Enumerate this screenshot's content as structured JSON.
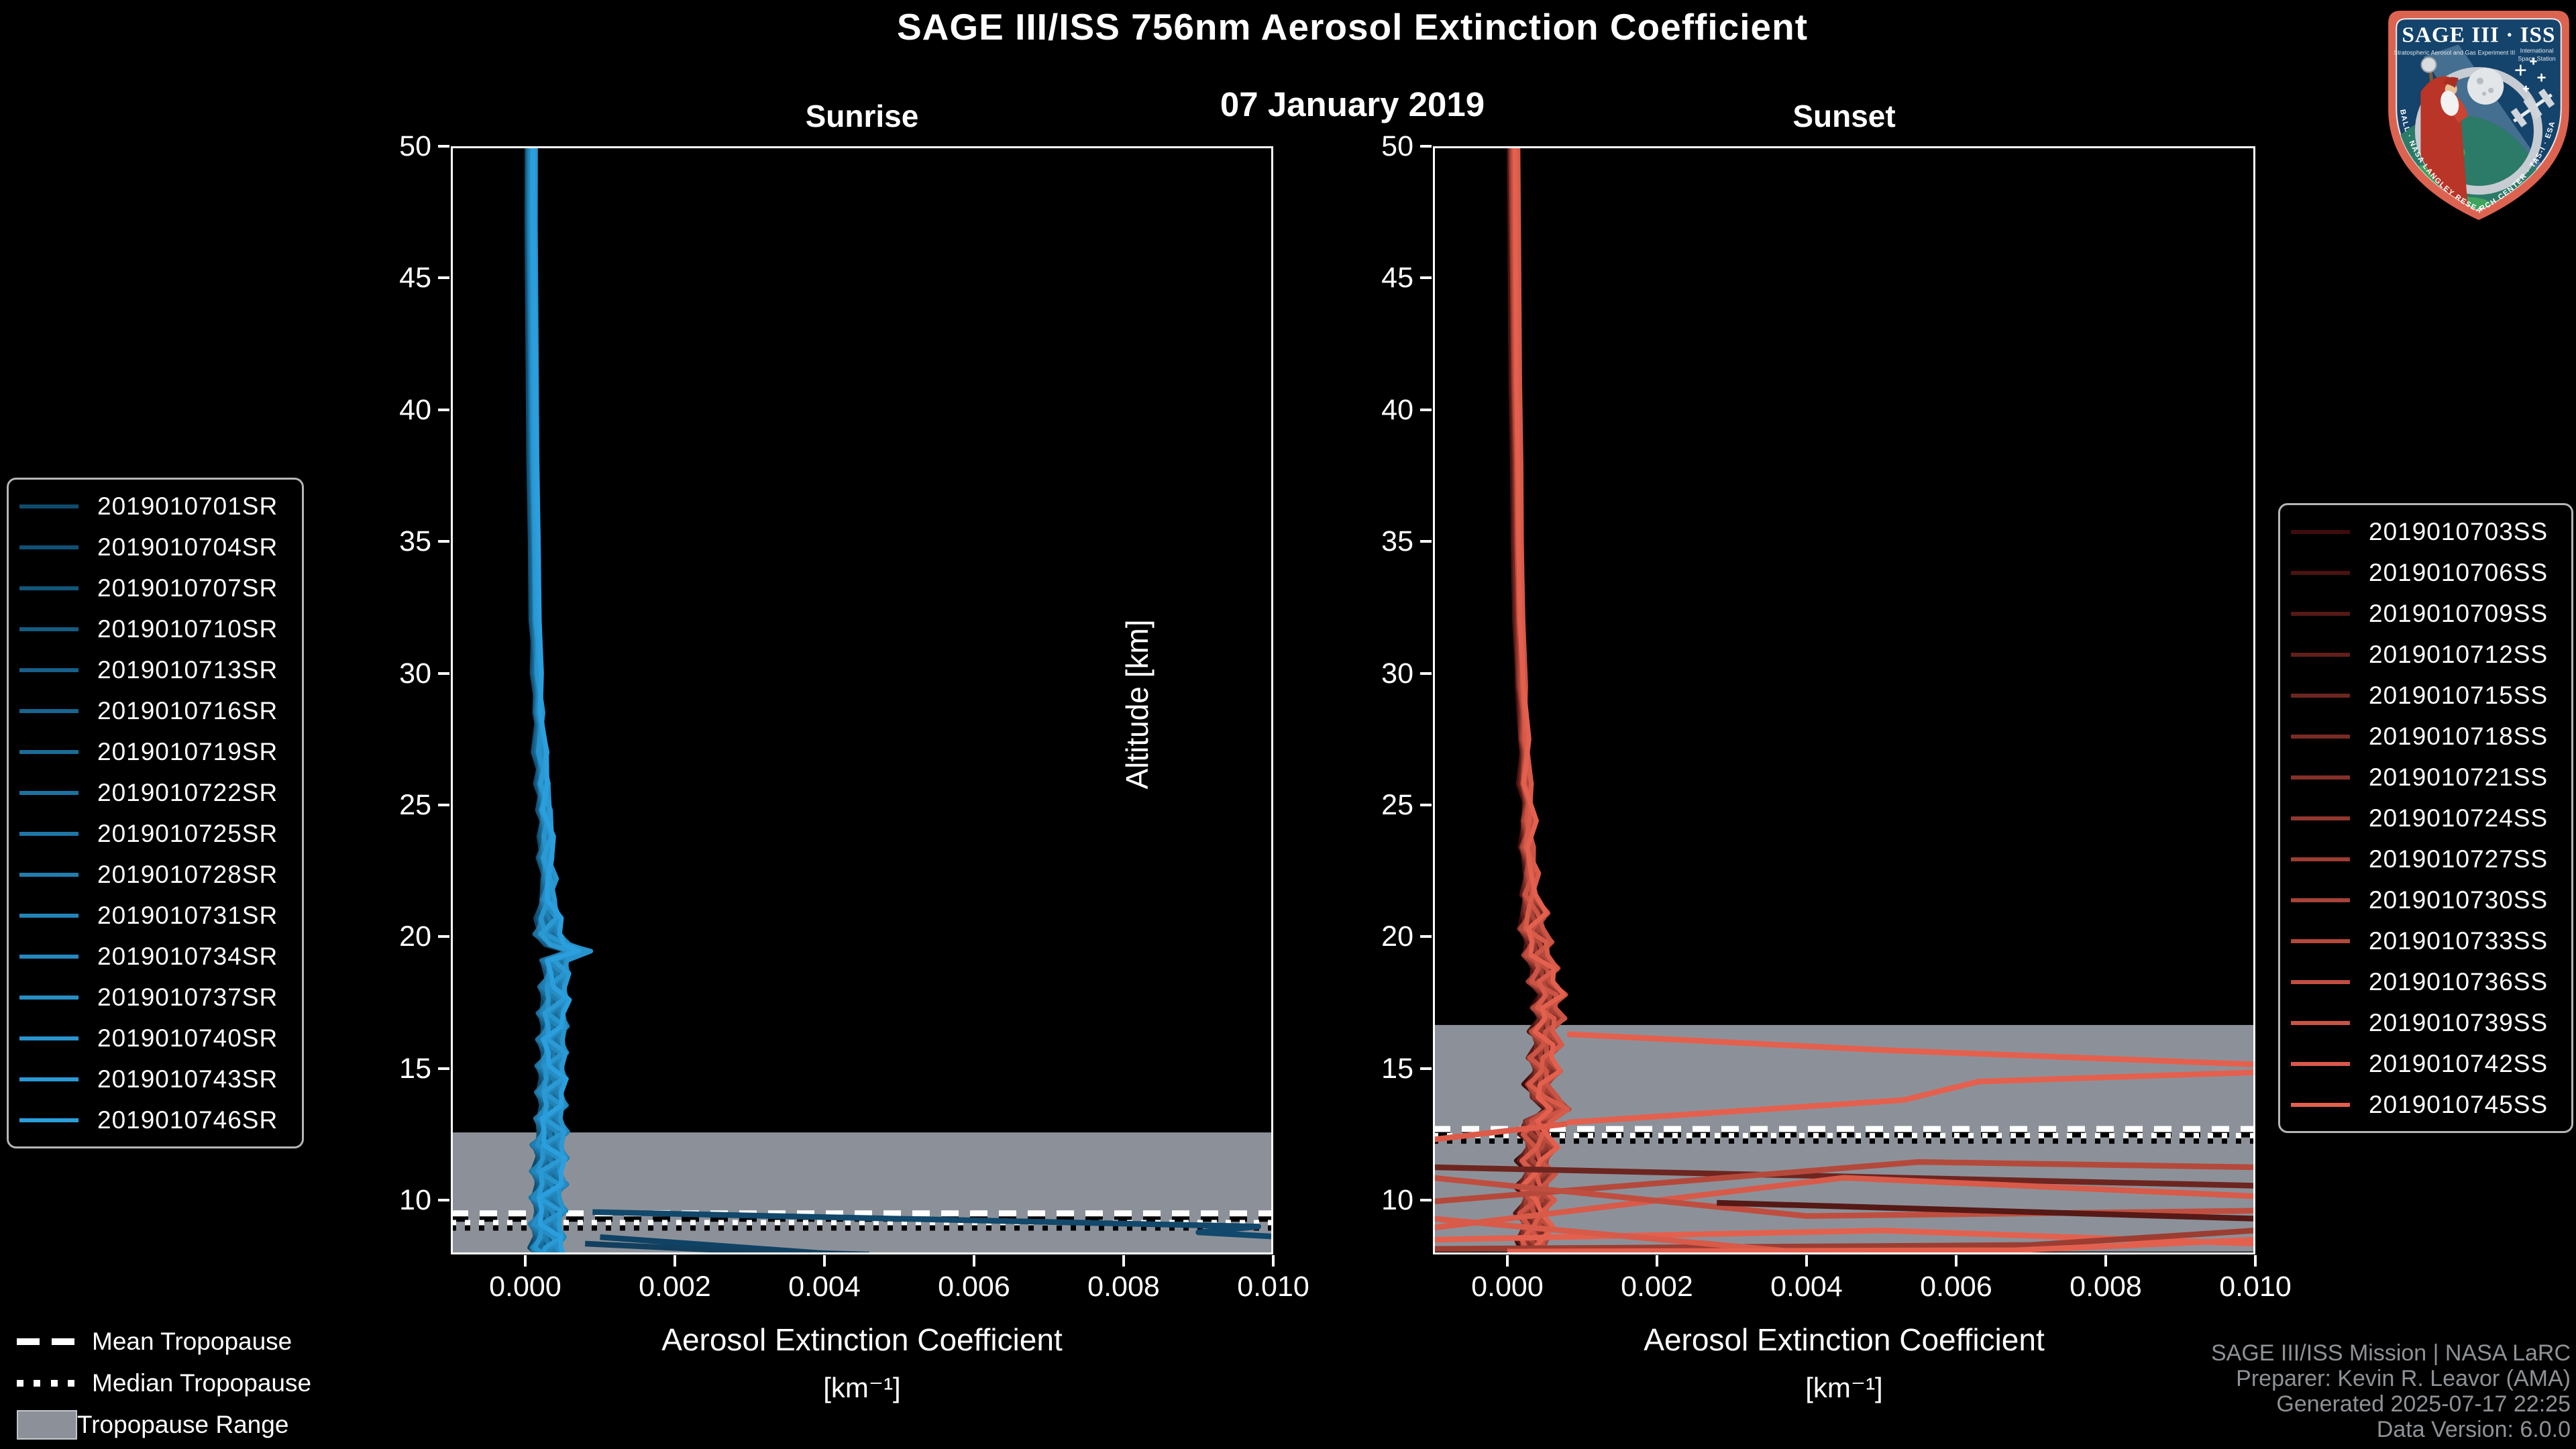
{
  "header": {
    "title": "SAGE III/ISS 756nm Aerosol Extinction Coefficient",
    "subtitle": "07 January 2019"
  },
  "footer_credits": {
    "color": "#8e9296",
    "line1": "SAGE III/ISS Mission | NASA LaRC",
    "line2": "Preparer: Kevin R. Leavor (AMA)",
    "line3": "Generated 2025-07-17 22:25",
    "line4": "Data Version: 6.0.0"
  },
  "tropopause_legend": {
    "items": [
      {
        "label": "Mean Tropopause",
        "style": "dashed-line"
      },
      {
        "label": "Median Tropopause",
        "style": "dotted-line"
      },
      {
        "label": "Tropopause Range",
        "style": "gray-band"
      }
    ]
  },
  "logo": {
    "title": "SAGE III · ISS",
    "sub_left": "Stratospheric Aerosol and Gas Experiment III",
    "sub_right1": "International",
    "sub_right2": "Space Station",
    "border_text": "BALL · NASA LANGLEY RESEARCH CENTER · TAS-I · ESA",
    "border_color": "#dd6351",
    "field_color": "#14436b"
  },
  "chart_data": [
    {
      "type": "line",
      "panel": "sunrise",
      "title": "Sunrise",
      "xlabel": "Aerosol Extinction Coefficient",
      "xunits": "[km⁻¹]",
      "ylabel": "Altitude [km]",
      "xlim": [
        -0.000995,
        0.01
      ],
      "ylim": [
        7.94,
        50
      ],
      "grid": false,
      "legend_position": "left",
      "xticks": [
        {
          "value": 0.0,
          "label": "0.000"
        },
        {
          "value": 0.002,
          "label": "0.002"
        },
        {
          "value": 0.004,
          "label": "0.004"
        },
        {
          "value": 0.006,
          "label": "0.006"
        },
        {
          "value": 0.008,
          "label": "0.008"
        },
        {
          "value": 0.01,
          "label": "0.010"
        }
      ],
      "yticks": [
        10,
        15,
        20,
        25,
        30,
        35,
        40,
        45,
        50
      ],
      "tropopause": {
        "mean_km": 9.5,
        "median_km": 9.15,
        "range_top_km": 12.57,
        "range_bottom_km": 7.94,
        "band_color": "#8c9199"
      },
      "series": [
        {
          "name": "2019010701SR",
          "color": "#0E4A6B"
        },
        {
          "name": "2019010704SR",
          "color": "#104F73"
        },
        {
          "name": "2019010707SR",
          "color": "#12557A"
        },
        {
          "name": "2019010710SR",
          "color": "#145B82"
        },
        {
          "name": "2019010713SR",
          "color": "#166089"
        },
        {
          "name": "2019010716SR",
          "color": "#186691"
        },
        {
          "name": "2019010719SR",
          "color": "#1A6C98"
        },
        {
          "name": "2019010722SR",
          "color": "#1C72A0"
        },
        {
          "name": "2019010725SR",
          "color": "#1E77A7"
        },
        {
          "name": "2019010728SR",
          "color": "#207DAF"
        },
        {
          "name": "2019010731SR",
          "color": "#2283B6"
        },
        {
          "name": "2019010734SR",
          "color": "#2488BE"
        },
        {
          "name": "2019010737SR",
          "color": "#268EC5"
        },
        {
          "name": "2019010740SR",
          "color": "#2894CD"
        },
        {
          "name": "2019010743SR",
          "color": "#2A99D4"
        },
        {
          "name": "2019010746SR",
          "color": "#2B9FDE"
        }
      ],
      "mean_profile": [
        [
          8e-05,
          50
        ],
        [
          8e-05,
          47
        ],
        [
          9e-05,
          44
        ],
        [
          0.0001,
          41
        ],
        [
          0.00011,
          38
        ],
        [
          0.00013,
          35
        ],
        [
          0.00014,
          32
        ],
        [
          0.00016,
          30
        ],
        [
          0.00018,
          28.5
        ],
        [
          0.00021,
          27
        ],
        [
          0.00024,
          25.8
        ],
        [
          0.00026,
          24.8
        ],
        [
          0.00029,
          23.8
        ],
        [
          0.00027,
          23
        ],
        [
          0.00032,
          22.2
        ],
        [
          0.00029,
          21.4
        ],
        [
          0.00033,
          20.7
        ],
        [
          0.00029,
          20.1
        ],
        [
          0.00045,
          19.7
        ],
        [
          0.00072,
          19.45
        ],
        [
          0.00038,
          19.1
        ],
        [
          0.00044,
          18.6
        ],
        [
          0.00035,
          18.1
        ],
        [
          0.00043,
          17.6
        ],
        [
          0.00033,
          17.1
        ],
        [
          0.00042,
          16.6
        ],
        [
          0.00032,
          16.1
        ],
        [
          0.00041,
          15.6
        ],
        [
          0.00031,
          15.1
        ],
        [
          0.0004,
          14.6
        ],
        [
          0.0003,
          14.1
        ],
        [
          0.0004,
          13.6
        ],
        [
          0.00029,
          13.1
        ],
        [
          0.00039,
          12.6
        ],
        [
          0.00027,
          12.1
        ],
        [
          0.00038,
          11.6
        ],
        [
          0.00026,
          11.1
        ],
        [
          0.00037,
          10.6
        ],
        [
          0.00025,
          10.1
        ],
        [
          0.00036,
          9.6
        ],
        [
          0.00024,
          9.1
        ],
        [
          0.00034,
          8.6
        ],
        [
          0.00026,
          8.2
        ],
        [
          0.00031,
          7.94
        ]
      ],
      "outliers": [
        {
          "color": "#11486B",
          "points": [
            [
              0.0009,
              9.55
            ],
            [
              0.0098,
              9.0
            ],
            [
              0.009,
              8.78
            ],
            [
              0.01,
              8.62
            ]
          ]
        },
        {
          "color": "#0F4265",
          "points": [
            [
              0.001,
              8.6
            ],
            [
              0.0042,
              7.94
            ]
          ]
        },
        {
          "color": "#123F5E",
          "points": [
            [
              0.0008,
              8.35
            ],
            [
              0.0028,
              8.08
            ],
            [
              0.0046,
              7.94
            ]
          ]
        }
      ]
    },
    {
      "type": "line",
      "panel": "sunset",
      "title": "Sunset",
      "xlabel": "Aerosol Extinction Coefficient",
      "xunits": "[km⁻¹]",
      "ylabel": "Altitude [km]",
      "xlim": [
        -0.000995,
        0.01
      ],
      "ylim": [
        7.94,
        50
      ],
      "grid": false,
      "legend_position": "right",
      "xticks": [
        {
          "value": 0.0,
          "label": "0.000"
        },
        {
          "value": 0.002,
          "label": "0.002"
        },
        {
          "value": 0.004,
          "label": "0.004"
        },
        {
          "value": 0.006,
          "label": "0.006"
        },
        {
          "value": 0.008,
          "label": "0.008"
        },
        {
          "value": 0.01,
          "label": "0.010"
        }
      ],
      "yticks": [
        10,
        15,
        20,
        25,
        30,
        35,
        40,
        45,
        50
      ],
      "tropopause": {
        "mean_km": 12.7,
        "median_km": 12.45,
        "range_top_km": 16.65,
        "range_bottom_km": 8.05,
        "band_color": "#8c9199"
      },
      "series": [
        {
          "name": "2019010703SS",
          "color": "#3D0D0D"
        },
        {
          "name": "2019010706SS",
          "color": "#491312"
        },
        {
          "name": "2019010709SS",
          "color": "#551916"
        },
        {
          "name": "2019010712SS",
          "color": "#611F1B"
        },
        {
          "name": "2019010715SS",
          "color": "#6D2520"
        },
        {
          "name": "2019010718SS",
          "color": "#792B24"
        },
        {
          "name": "2019010721SS",
          "color": "#853129"
        },
        {
          "name": "2019010724SS",
          "color": "#91372E"
        },
        {
          "name": "2019010727SS",
          "color": "#9C3D32"
        },
        {
          "name": "2019010730SS",
          "color": "#A84337"
        },
        {
          "name": "2019010733SS",
          "color": "#B4493B"
        },
        {
          "name": "2019010736SS",
          "color": "#C04E40"
        },
        {
          "name": "2019010739SS",
          "color": "#CC5445"
        },
        {
          "name": "2019010742SS",
          "color": "#D85A49"
        },
        {
          "name": "2019010745SS",
          "color": "#E4604E"
        }
      ],
      "mean_profile": [
        [
          8e-05,
          50
        ],
        [
          9e-05,
          47
        ],
        [
          0.0001,
          44
        ],
        [
          0.00011,
          41
        ],
        [
          0.00013,
          38
        ],
        [
          0.00014,
          35
        ],
        [
          0.00016,
          32
        ],
        [
          0.00019,
          29.5
        ],
        [
          0.00022,
          27.5
        ],
        [
          0.00025,
          25.8
        ],
        [
          0.00028,
          24.4
        ],
        [
          0.00026,
          23.4
        ],
        [
          0.00032,
          22.4
        ],
        [
          0.00028,
          21.6
        ],
        [
          0.00038,
          20.9
        ],
        [
          0.00031,
          20.3
        ],
        [
          0.00044,
          19.8
        ],
        [
          0.00036,
          19.3
        ],
        [
          0.00052,
          18.8
        ],
        [
          0.00042,
          18.3
        ],
        [
          0.00062,
          17.8
        ],
        [
          0.00048,
          17.3
        ],
        [
          0.0006,
          16.9
        ],
        [
          0.00045,
          16.4
        ],
        [
          0.00056,
          15.9
        ],
        [
          0.00042,
          15.4
        ],
        [
          0.00054,
          14.9
        ],
        [
          0.0004,
          14.4
        ],
        [
          0.0005,
          13.9
        ],
        [
          0.00068,
          13.45
        ],
        [
          0.0004,
          13.0
        ],
        [
          0.00036,
          12.5
        ],
        [
          0.00046,
          12.0
        ],
        [
          0.00034,
          11.5
        ],
        [
          0.00044,
          11.0
        ],
        [
          0.00032,
          10.5
        ],
        [
          0.00042,
          10.0
        ],
        [
          0.00031,
          9.5
        ],
        [
          0.00039,
          9.0
        ],
        [
          0.00034,
          8.5
        ],
        [
          0.00036,
          8.05
        ]
      ],
      "outliers": [
        {
          "color": "#E4604E",
          "points": [
            [
              0.0008,
              16.3
            ],
            [
              0.005,
              15.7
            ],
            [
              0.01,
              15.15
            ]
          ]
        },
        {
          "color": "#E4604E",
          "points": [
            [
              0.0008,
              12.95
            ],
            [
              0.0053,
              13.8
            ],
            [
              0.0063,
              14.5
            ],
            [
              0.01,
              14.85
            ]
          ]
        },
        {
          "color": "#DE5A49",
          "points": [
            [
              -0.001,
              12.3
            ],
            [
              0.0008,
              12.9
            ]
          ]
        },
        {
          "color": "#6D2520",
          "points": [
            [
              -0.001,
              11.25
            ],
            [
              0.01,
              10.55
            ]
          ]
        },
        {
          "color": "#B4493B",
          "points": [
            [
              -0.001,
              9.95
            ],
            [
              0.0055,
              11.45
            ],
            [
              0.01,
              11.25
            ]
          ]
        },
        {
          "color": "#D85A49",
          "points": [
            [
              -0.001,
              8.95
            ],
            [
              0.0045,
              10.85
            ],
            [
              0.01,
              10.15
            ]
          ]
        },
        {
          "color": "#C04E40",
          "points": [
            [
              -0.001,
              10.85
            ],
            [
              0.004,
              9.4
            ],
            [
              0.01,
              9.6
            ]
          ]
        },
        {
          "color": "#551916",
          "points": [
            [
              0.0028,
              9.9
            ],
            [
              0.01,
              9.3
            ]
          ]
        },
        {
          "color": "#E4604E",
          "points": [
            [
              -0.001,
              8.5
            ],
            [
              0.005,
              8.85
            ],
            [
              0.01,
              8.35
            ]
          ]
        },
        {
          "color": "#9C3D32",
          "points": [
            [
              -0.001,
              8.15
            ],
            [
              0.007,
              8.3
            ],
            [
              0.01,
              8.85
            ]
          ]
        },
        {
          "color": "#D85A49",
          "points": [
            [
              -0.001,
              9.3
            ],
            [
              0.0042,
              7.95
            ]
          ]
        },
        {
          "color": "#E4604E",
          "points": [
            [
              0.0,
              8.05
            ],
            [
              0.0068,
              8.1
            ],
            [
              0.01,
              8.5
            ]
          ]
        }
      ]
    }
  ]
}
